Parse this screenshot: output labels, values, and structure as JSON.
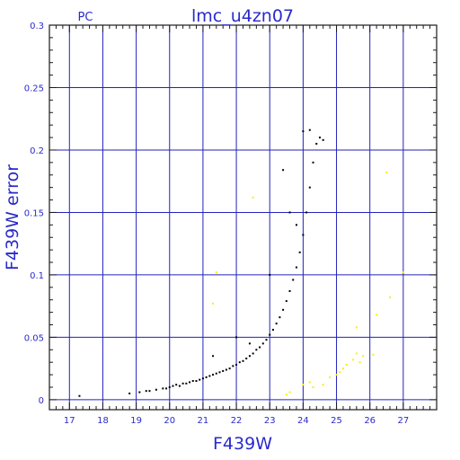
{
  "chart_data": {
    "type": "scatter",
    "title": "lmc_u4zn07",
    "label_left": "PC",
    "xlabel": "F439W",
    "ylabel": "F439W error",
    "xlim": [
      16.4,
      28.0
    ],
    "ylim": [
      -0.008,
      0.3
    ],
    "x_ticks": [
      17,
      18,
      19,
      20,
      21,
      22,
      23,
      24,
      25,
      26,
      27
    ],
    "y_ticks": [
      0,
      0.05,
      0.1,
      0.15,
      0.2,
      0.25,
      0.3
    ],
    "y_tick_labels": [
      "0",
      "0.05",
      "0.1",
      "0.15",
      "0.2",
      "0.25",
      "0.3"
    ],
    "grid": true,
    "colors": {
      "frame": "#1a1a1a",
      "grid": "#2222bb",
      "text": "#2a2acc",
      "main": "#000000",
      "secondary": "#ffee00"
    },
    "series": [
      {
        "color": "#000000",
        "points": [
          [
            17.3,
            0.003
          ],
          [
            18.8,
            0.005
          ],
          [
            19.1,
            0.006
          ],
          [
            19.3,
            0.007
          ],
          [
            19.4,
            0.007
          ],
          [
            19.6,
            0.008
          ],
          [
            19.8,
            0.009
          ],
          [
            19.9,
            0.009
          ],
          [
            20.0,
            0.01
          ],
          [
            20.1,
            0.011
          ],
          [
            20.2,
            0.012
          ],
          [
            20.3,
            0.011
          ],
          [
            20.4,
            0.013
          ],
          [
            20.5,
            0.013
          ],
          [
            20.6,
            0.014
          ],
          [
            20.7,
            0.015
          ],
          [
            20.8,
            0.015
          ],
          [
            20.9,
            0.016
          ],
          [
            21.0,
            0.017
          ],
          [
            21.1,
            0.018
          ],
          [
            21.2,
            0.019
          ],
          [
            21.3,
            0.02
          ],
          [
            21.4,
            0.021
          ],
          [
            21.5,
            0.022
          ],
          [
            21.6,
            0.023
          ],
          [
            21.7,
            0.024
          ],
          [
            21.8,
            0.025
          ],
          [
            21.9,
            0.027
          ],
          [
            22.0,
            0.028
          ],
          [
            22.1,
            0.03
          ],
          [
            22.2,
            0.031
          ],
          [
            22.3,
            0.033
          ],
          [
            22.4,
            0.035
          ],
          [
            22.5,
            0.037
          ],
          [
            22.6,
            0.04
          ],
          [
            22.7,
            0.042
          ],
          [
            22.8,
            0.045
          ],
          [
            22.9,
            0.048
          ],
          [
            23.0,
            0.052
          ],
          [
            23.1,
            0.056
          ],
          [
            23.2,
            0.061
          ],
          [
            23.3,
            0.066
          ],
          [
            23.4,
            0.072
          ],
          [
            23.5,
            0.079
          ],
          [
            23.6,
            0.087
          ],
          [
            23.7,
            0.096
          ],
          [
            23.8,
            0.106
          ],
          [
            23.9,
            0.118
          ],
          [
            24.0,
            0.132
          ],
          [
            24.1,
            0.15
          ],
          [
            24.2,
            0.17
          ],
          [
            24.3,
            0.19
          ],
          [
            24.4,
            0.205
          ],
          [
            24.5,
            0.21
          ],
          [
            21.3,
            0.035
          ],
          [
            22.0,
            0.05
          ],
          [
            23.4,
            0.184
          ],
          [
            23.0,
            0.1
          ],
          [
            22.4,
            0.045
          ],
          [
            24.0,
            0.215
          ],
          [
            24.2,
            0.216
          ],
          [
            24.6,
            0.208
          ],
          [
            23.8,
            0.14
          ],
          [
            23.6,
            0.15
          ]
        ]
      },
      {
        "color": "#ffee00",
        "points": [
          [
            21.3,
            0.077
          ],
          [
            21.4,
            0.102
          ],
          [
            22.5,
            0.162
          ],
          [
            23.5,
            0.004
          ],
          [
            23.6,
            0.006
          ],
          [
            24.0,
            0.012
          ],
          [
            24.2,
            0.014
          ],
          [
            24.3,
            0.01
          ],
          [
            24.6,
            0.012
          ],
          [
            24.8,
            0.018
          ],
          [
            25.0,
            0.02
          ],
          [
            25.1,
            0.022
          ],
          [
            25.2,
            0.025
          ],
          [
            25.3,
            0.028
          ],
          [
            25.5,
            0.032
          ],
          [
            25.6,
            0.037
          ],
          [
            25.7,
            0.03
          ],
          [
            25.8,
            0.035
          ],
          [
            25.6,
            0.058
          ],
          [
            26.1,
            0.036
          ],
          [
            26.2,
            0.068
          ],
          [
            26.5,
            0.182
          ],
          [
            26.6,
            0.082
          ],
          [
            27.0,
            0.102
          ]
        ]
      }
    ]
  }
}
